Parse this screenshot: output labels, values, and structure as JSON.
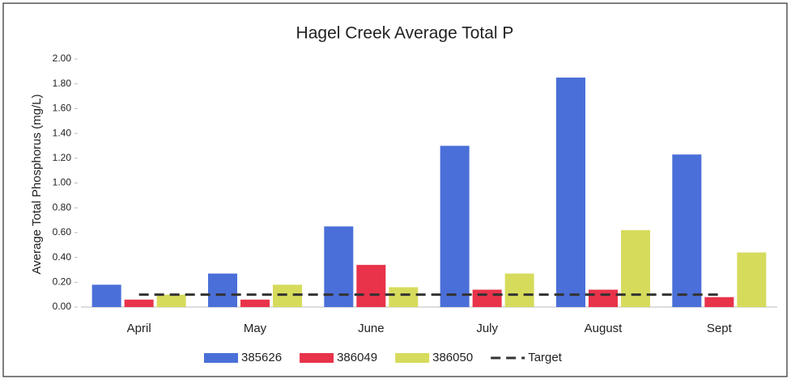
{
  "chart_data": {
    "type": "bar",
    "title": "Hagel Creek Average Total P",
    "ylabel": "Average Total Phosphorus (mg/L)",
    "categories": [
      "April",
      "May",
      "June",
      "July",
      "August",
      "Sept"
    ],
    "series": [
      {
        "name": "385626",
        "color": "#4a6fd8",
        "values": [
          0.18,
          0.27,
          0.65,
          1.3,
          1.85,
          1.23
        ]
      },
      {
        "name": "386049",
        "color": "#e8334a",
        "values": [
          0.06,
          0.06,
          0.34,
          0.14,
          0.14,
          0.08
        ]
      },
      {
        "name": "386050",
        "color": "#d6db5c",
        "values": [
          0.1,
          0.18,
          0.16,
          0.27,
          0.62,
          0.44
        ]
      },
      {
        "name": "Target",
        "color": "#333333",
        "type": "line",
        "dashed": true,
        "values": [
          0.1,
          0.1,
          0.1,
          0.1,
          0.1,
          0.1
        ]
      }
    ],
    "ylim": [
      0,
      2
    ],
    "yticks": [
      {
        "value": 0,
        "label": "0.00"
      },
      {
        "value": 0.2,
        "label": "0.20"
      },
      {
        "value": 0.4,
        "label": "0.40"
      },
      {
        "value": 0.6,
        "label": "0.60"
      },
      {
        "value": 0.8,
        "label": "0.80"
      },
      {
        "value": 1.0,
        "label": "1.00"
      },
      {
        "value": 1.2,
        "label": "1.20"
      },
      {
        "value": 1.4,
        "label": "1.40"
      },
      {
        "value": 1.6,
        "label": "1.60"
      },
      {
        "value": 1.8,
        "label": "1.80"
      },
      {
        "value": 2.0,
        "label": "2.00"
      }
    ],
    "grid": false,
    "legend": "bottom"
  }
}
